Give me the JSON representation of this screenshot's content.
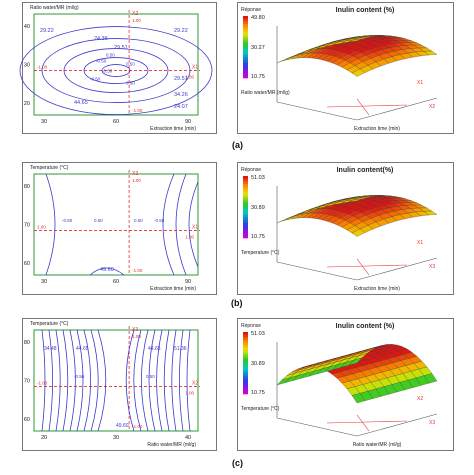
{
  "panels": [
    {
      "caption": "(a)",
      "contour": {
        "ylabel": "Ratio water/MR (ml/g)",
        "xlabel": "Extraction time (min)",
        "yticks": [
          "40",
          "30",
          "20"
        ],
        "xticks": [
          "30",
          "60",
          "90"
        ],
        "marker_x": "X2",
        "marker_y": "X1",
        "marker_left": "-1.00",
        "marker_right": "1.00",
        "marker_top": "1.00",
        "marker_bottom": "-1.00",
        "center_labels": [
          "0.50",
          "0.50",
          "0.50",
          "-0.50",
          "-0.50",
          "-0.50"
        ],
        "levels": [
          "29.22",
          "24.36",
          "29.51",
          "29.22",
          "44.65",
          "29.51",
          "34.26",
          "24.07"
        ]
      },
      "surface": {
        "title": "Inulin content (%)",
        "legend_title": "Réponse",
        "legend_max": "49.80",
        "legend_mid": "30.27",
        "legend_min": "10.75",
        "axis_left": "Ratio water/MR (ml/g)",
        "axis_front": "Extraction time (min)",
        "axis_marker": "X2",
        "axis_marker2": "X1"
      }
    },
    {
      "caption": "(b)",
      "contour": {
        "ylabel": "Temperature (°C)",
        "xlabel": "Extraction time (min)",
        "yticks": [
          "80",
          "70",
          "60"
        ],
        "xticks": [
          "30",
          "60",
          "90"
        ],
        "marker_x": "X3",
        "marker_y": "X1",
        "marker_left": "1.00",
        "marker_right": "1.00",
        "marker_top": "1.00",
        "marker_bottom": "-1.00",
        "center_labels": [
          "-0.50",
          "0.50",
          "0.50",
          "-0.50"
        ],
        "levels": [
          "49.60"
        ]
      },
      "surface": {
        "title": "Inulin content(%)",
        "legend_title": "Réponse",
        "legend_max": "51.03",
        "legend_mid": "30.89",
        "legend_min": "10.75",
        "axis_left": "Temperature (°C)",
        "axis_front": "Extraction time (min)",
        "axis_marker": "X3",
        "axis_marker2": "X1"
      }
    },
    {
      "caption": "(c)",
      "contour": {
        "ylabel": "Temperature (°C)",
        "xlabel": "Ratio water/MR (ml/g)",
        "yticks": [
          "80",
          "70",
          "60"
        ],
        "xticks": [
          "20",
          "30",
          "40"
        ],
        "marker_x": "X3",
        "marker_y": "X2",
        "marker_left": "-1.00",
        "marker_right": "1.00",
        "marker_top": "1.00",
        "marker_bottom": "-1.00",
        "center_labels": [
          "-0.50",
          "0.50"
        ],
        "levels": [
          "34.48",
          "44.65",
          "44.65",
          "51.36",
          "49.60"
        ]
      },
      "surface": {
        "title": "Inulin content (%)",
        "legend_title": "Réponse",
        "legend_max": "51.03",
        "legend_mid": "30.89",
        "legend_min": "10.75",
        "axis_left": "Temperature (°C)",
        "axis_front": "Ratio water/MR (ml/g)",
        "axis_marker": "X3",
        "axis_marker2": "X2"
      }
    }
  ],
  "colors": {
    "contour": "#3a3acb",
    "marker": "#e23030",
    "frame": "#2e9a3a",
    "axis": "#555555"
  }
}
